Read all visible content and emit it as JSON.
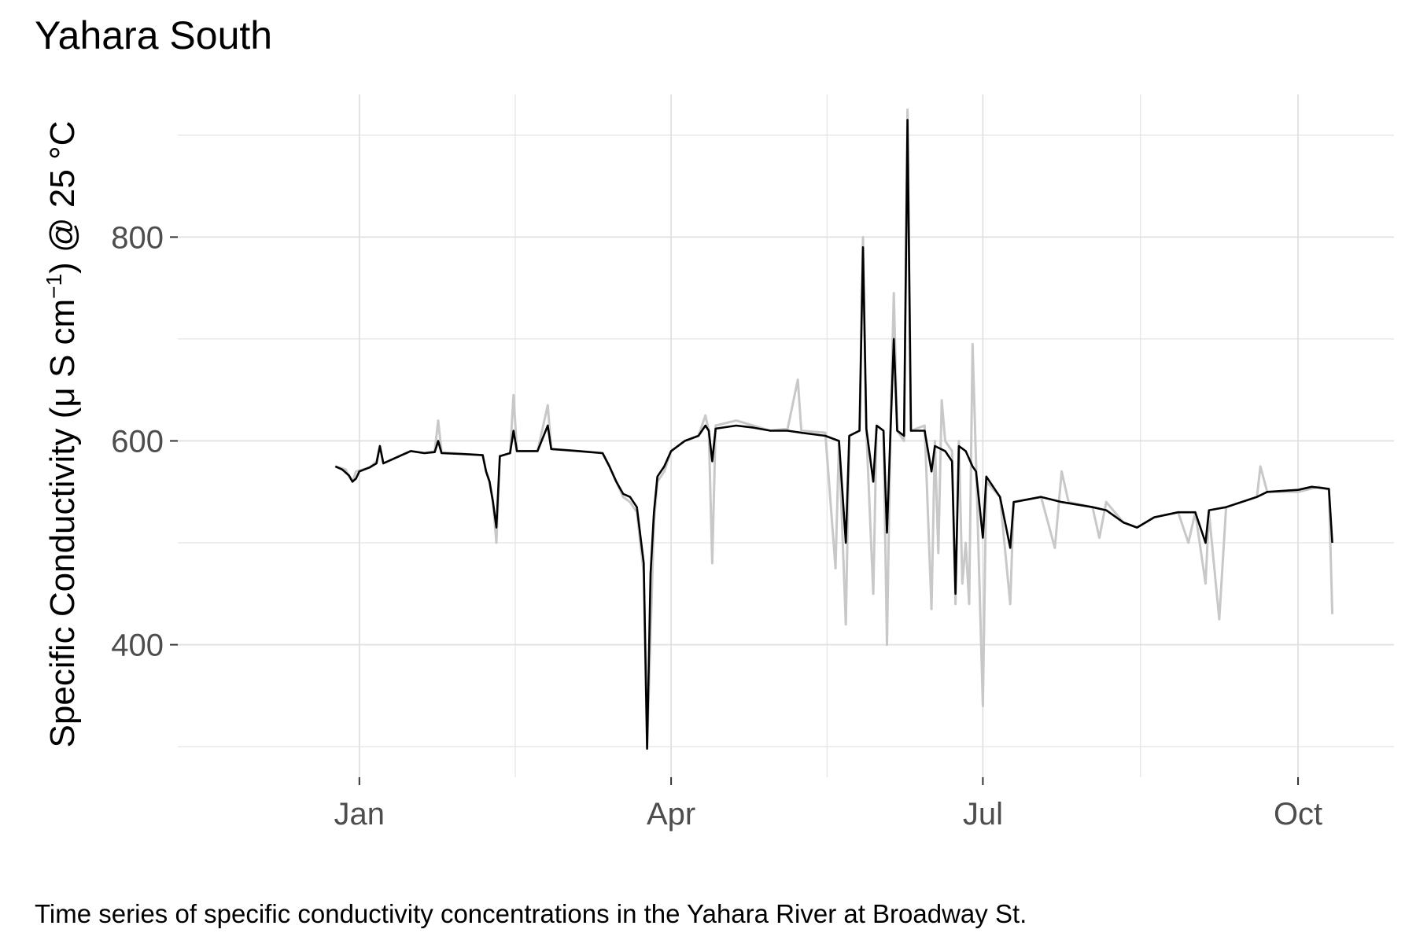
{
  "caption": "Time series of specific conductivity concentrations in the Yahara River at Broadway St.",
  "chart_data": {
    "type": "line",
    "title": "Yahara South",
    "xlabel": "",
    "ylabel_parts": [
      "Specific Conductivity (",
      "μ",
      " S cm",
      "−1",
      ") @ 25 °C"
    ],
    "x_ticks": [
      {
        "label": "Jan",
        "date": "2020-01-01"
      },
      {
        "label": "Apr",
        "date": "2020-04-01"
      },
      {
        "label": "Jul",
        "date": "2020-07-01"
      },
      {
        "label": "Oct",
        "date": "2020-10-01"
      }
    ],
    "x_range": [
      "2019-11-09",
      "2020-10-29"
    ],
    "y_ticks": [
      400,
      600,
      800
    ],
    "ylim": [
      270,
      940
    ],
    "grid": true,
    "colors": {
      "main": "#000000",
      "raw": "#c8c8c8",
      "grid": "#dedede"
    },
    "series": [
      {
        "role": "raw",
        "points": [
          [
            "2019-12-25",
            575
          ],
          [
            "2019-12-28",
            572
          ],
          [
            "2019-12-29",
            565
          ],
          [
            "2019-12-30",
            560
          ],
          [
            "2019-12-31",
            570
          ],
          [
            "2020-01-04",
            574
          ],
          [
            "2020-01-06",
            580
          ],
          [
            "2020-01-07",
            595
          ],
          [
            "2020-01-08",
            578
          ],
          [
            "2020-01-12",
            584
          ],
          [
            "2020-01-16",
            590
          ],
          [
            "2020-01-20",
            588
          ],
          [
            "2020-01-23",
            590
          ],
          [
            "2020-01-24",
            620
          ],
          [
            "2020-01-25",
            589
          ],
          [
            "2020-02-01",
            587
          ],
          [
            "2020-02-06",
            586
          ],
          [
            "2020-02-07",
            570
          ],
          [
            "2020-02-08",
            560
          ],
          [
            "2020-02-09",
            540
          ],
          [
            "2020-02-10",
            500
          ],
          [
            "2020-02-11",
            585
          ],
          [
            "2020-02-14",
            588
          ],
          [
            "2020-02-15",
            645
          ],
          [
            "2020-02-16",
            590
          ],
          [
            "2020-02-22",
            590
          ],
          [
            "2020-02-25",
            635
          ],
          [
            "2020-02-26",
            592
          ],
          [
            "2020-03-05",
            590
          ],
          [
            "2020-03-12",
            588
          ],
          [
            "2020-03-14",
            575
          ],
          [
            "2020-03-16",
            560
          ],
          [
            "2020-03-18",
            545
          ],
          [
            "2020-03-20",
            540
          ],
          [
            "2020-03-22",
            530
          ],
          [
            "2020-03-24",
            470
          ],
          [
            "2020-03-25",
            300
          ],
          [
            "2020-03-26",
            410
          ],
          [
            "2020-03-27",
            520
          ],
          [
            "2020-03-28",
            560
          ],
          [
            "2020-03-30",
            570
          ],
          [
            "2020-04-01",
            590
          ],
          [
            "2020-04-05",
            600
          ],
          [
            "2020-04-09",
            605
          ],
          [
            "2020-04-11",
            625
          ],
          [
            "2020-04-12",
            610
          ],
          [
            "2020-04-13",
            480
          ],
          [
            "2020-04-14",
            615
          ],
          [
            "2020-04-20",
            620
          ],
          [
            "2020-04-25",
            615
          ],
          [
            "2020-04-30",
            610
          ],
          [
            "2020-05-05",
            612
          ],
          [
            "2020-05-08",
            660
          ],
          [
            "2020-05-09",
            610
          ],
          [
            "2020-05-16",
            608
          ],
          [
            "2020-05-19",
            475
          ],
          [
            "2020-05-20",
            600
          ],
          [
            "2020-05-22",
            420
          ],
          [
            "2020-05-23",
            605
          ],
          [
            "2020-05-26",
            610
          ],
          [
            "2020-05-27",
            800
          ],
          [
            "2020-05-28",
            610
          ],
          [
            "2020-05-30",
            450
          ],
          [
            "2020-05-31",
            615
          ],
          [
            "2020-06-02",
            610
          ],
          [
            "2020-06-03",
            400
          ],
          [
            "2020-06-04",
            605
          ],
          [
            "2020-06-05",
            745
          ],
          [
            "2020-06-06",
            610
          ],
          [
            "2020-06-08",
            600
          ],
          [
            "2020-06-09",
            925
          ],
          [
            "2020-06-10",
            610
          ],
          [
            "2020-06-14",
            615
          ],
          [
            "2020-06-16",
            435
          ],
          [
            "2020-06-17",
            600
          ],
          [
            "2020-06-18",
            490
          ],
          [
            "2020-06-19",
            640
          ],
          [
            "2020-06-20",
            600
          ],
          [
            "2020-06-22",
            590
          ],
          [
            "2020-06-23",
            440
          ],
          [
            "2020-06-24",
            600
          ],
          [
            "2020-06-25",
            460
          ],
          [
            "2020-06-26",
            500
          ],
          [
            "2020-06-27",
            440
          ],
          [
            "2020-06-28",
            695
          ],
          [
            "2020-06-29",
            580
          ],
          [
            "2020-07-01",
            340
          ],
          [
            "2020-07-02",
            560
          ],
          [
            "2020-07-06",
            545
          ],
          [
            "2020-07-09",
            440
          ],
          [
            "2020-07-10",
            540
          ],
          [
            "2020-07-18",
            545
          ],
          [
            "2020-07-22",
            495
          ],
          [
            "2020-07-24",
            570
          ],
          [
            "2020-07-26",
            540
          ],
          [
            "2020-08-02",
            535
          ],
          [
            "2020-08-04",
            505
          ],
          [
            "2020-08-06",
            540
          ],
          [
            "2020-08-11",
            520
          ],
          [
            "2020-08-15",
            515
          ],
          [
            "2020-08-20",
            525
          ],
          [
            "2020-08-27",
            530
          ],
          [
            "2020-08-30",
            500
          ],
          [
            "2020-09-01",
            530
          ],
          [
            "2020-09-04",
            460
          ],
          [
            "2020-09-05",
            530
          ],
          [
            "2020-09-08",
            425
          ],
          [
            "2020-09-10",
            535
          ],
          [
            "2020-09-19",
            545
          ],
          [
            "2020-09-20",
            575
          ],
          [
            "2020-09-22",
            550
          ],
          [
            "2020-10-01",
            550
          ],
          [
            "2020-10-07",
            555
          ],
          [
            "2020-10-10",
            552
          ],
          [
            "2020-10-11",
            430
          ]
        ]
      },
      {
        "role": "main",
        "points": [
          [
            "2019-12-25",
            575
          ],
          [
            "2019-12-27",
            572
          ],
          [
            "2019-12-29",
            566
          ],
          [
            "2019-12-30",
            560
          ],
          [
            "2019-12-31",
            563
          ],
          [
            "2020-01-01",
            570
          ],
          [
            "2020-01-04",
            574
          ],
          [
            "2020-01-06",
            578
          ],
          [
            "2020-01-07",
            595
          ],
          [
            "2020-01-08",
            578
          ],
          [
            "2020-01-12",
            584
          ],
          [
            "2020-01-16",
            590
          ],
          [
            "2020-01-20",
            588
          ],
          [
            "2020-01-23",
            589
          ],
          [
            "2020-01-24",
            600
          ],
          [
            "2020-01-25",
            588
          ],
          [
            "2020-02-01",
            587
          ],
          [
            "2020-02-06",
            586
          ],
          [
            "2020-02-07",
            570
          ],
          [
            "2020-02-08",
            560
          ],
          [
            "2020-02-09",
            540
          ],
          [
            "2020-02-10",
            515
          ],
          [
            "2020-02-11",
            585
          ],
          [
            "2020-02-14",
            588
          ],
          [
            "2020-02-15",
            610
          ],
          [
            "2020-02-16",
            590
          ],
          [
            "2020-02-22",
            590
          ],
          [
            "2020-02-25",
            615
          ],
          [
            "2020-02-26",
            592
          ],
          [
            "2020-03-05",
            590
          ],
          [
            "2020-03-12",
            588
          ],
          [
            "2020-03-14",
            575
          ],
          [
            "2020-03-16",
            560
          ],
          [
            "2020-03-18",
            548
          ],
          [
            "2020-03-20",
            545
          ],
          [
            "2020-03-22",
            535
          ],
          [
            "2020-03-24",
            480
          ],
          [
            "2020-03-25",
            298
          ],
          [
            "2020-03-26",
            470
          ],
          [
            "2020-03-27",
            530
          ],
          [
            "2020-03-28",
            565
          ],
          [
            "2020-03-30",
            575
          ],
          [
            "2020-04-01",
            590
          ],
          [
            "2020-04-05",
            600
          ],
          [
            "2020-04-09",
            605
          ],
          [
            "2020-04-11",
            615
          ],
          [
            "2020-04-12",
            610
          ],
          [
            "2020-04-13",
            580
          ],
          [
            "2020-04-14",
            612
          ],
          [
            "2020-04-20",
            615
          ],
          [
            "2020-04-25",
            613
          ],
          [
            "2020-04-30",
            610
          ],
          [
            "2020-05-05",
            610
          ],
          [
            "2020-05-09",
            608
          ],
          [
            "2020-05-16",
            605
          ],
          [
            "2020-05-20",
            600
          ],
          [
            "2020-05-22",
            500
          ],
          [
            "2020-05-23",
            605
          ],
          [
            "2020-05-26",
            610
          ],
          [
            "2020-05-27",
            790
          ],
          [
            "2020-05-28",
            612
          ],
          [
            "2020-05-30",
            560
          ],
          [
            "2020-05-31",
            615
          ],
          [
            "2020-06-02",
            610
          ],
          [
            "2020-06-03",
            510
          ],
          [
            "2020-06-04",
            605
          ],
          [
            "2020-06-05",
            700
          ],
          [
            "2020-06-06",
            610
          ],
          [
            "2020-06-08",
            605
          ],
          [
            "2020-06-09",
            915
          ],
          [
            "2020-06-10",
            610
          ],
          [
            "2020-06-14",
            610
          ],
          [
            "2020-06-16",
            570
          ],
          [
            "2020-06-17",
            595
          ],
          [
            "2020-06-20",
            590
          ],
          [
            "2020-06-22",
            580
          ],
          [
            "2020-06-23",
            450
          ],
          [
            "2020-06-24",
            595
          ],
          [
            "2020-06-26",
            590
          ],
          [
            "2020-06-28",
            575
          ],
          [
            "2020-06-29",
            570
          ],
          [
            "2020-07-01",
            505
          ],
          [
            "2020-07-02",
            565
          ],
          [
            "2020-07-06",
            545
          ],
          [
            "2020-07-09",
            495
          ],
          [
            "2020-07-10",
            540
          ],
          [
            "2020-07-18",
            545
          ],
          [
            "2020-07-24",
            540
          ],
          [
            "2020-08-02",
            535
          ],
          [
            "2020-08-06",
            532
          ],
          [
            "2020-08-11",
            520
          ],
          [
            "2020-08-15",
            515
          ],
          [
            "2020-08-20",
            525
          ],
          [
            "2020-08-27",
            530
          ],
          [
            "2020-09-01",
            530
          ],
          [
            "2020-09-04",
            500
          ],
          [
            "2020-09-05",
            532
          ],
          [
            "2020-09-10",
            535
          ],
          [
            "2020-09-19",
            545
          ],
          [
            "2020-09-22",
            550
          ],
          [
            "2020-10-01",
            552
          ],
          [
            "2020-10-05",
            555
          ],
          [
            "2020-10-10",
            553
          ],
          [
            "2020-10-11",
            500
          ]
        ]
      }
    ]
  }
}
